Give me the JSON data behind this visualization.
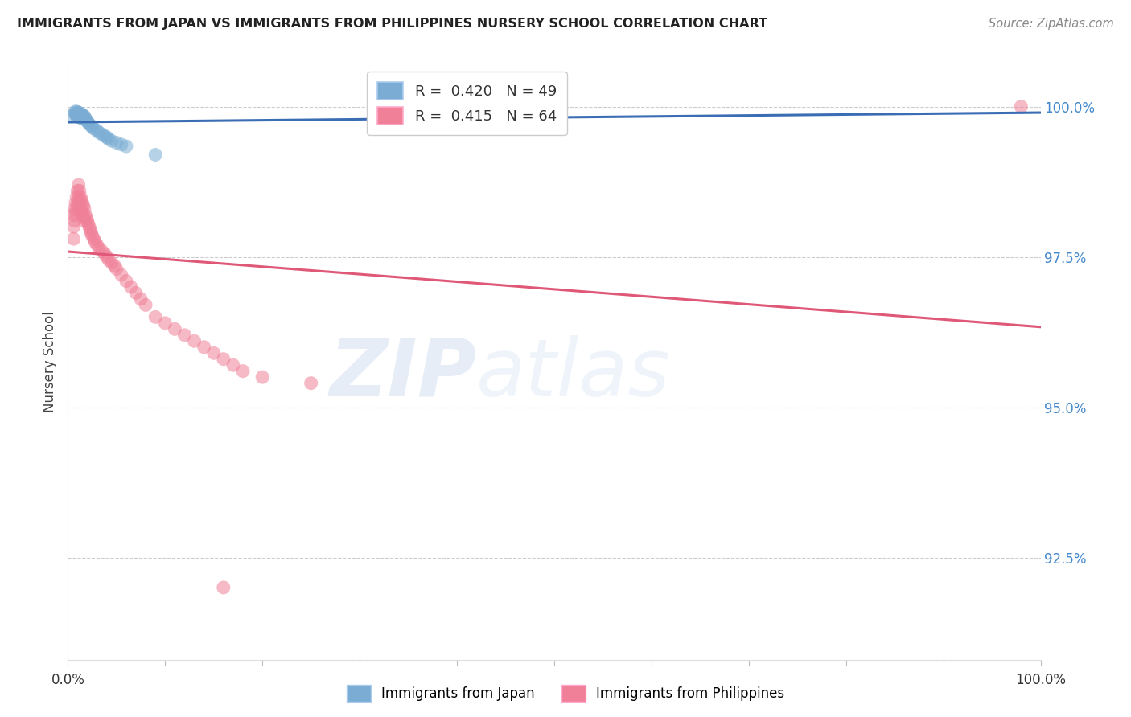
{
  "title": "IMMIGRANTS FROM JAPAN VS IMMIGRANTS FROM PHILIPPINES NURSERY SCHOOL CORRELATION CHART",
  "source": "Source: ZipAtlas.com",
  "ylabel": "Nursery School",
  "ytick_labels": [
    "100.0%",
    "97.5%",
    "95.0%",
    "92.5%"
  ],
  "ytick_values": [
    1.0,
    0.975,
    0.95,
    0.925
  ],
  "xlim": [
    0.0,
    1.0
  ],
  "ylim": [
    0.908,
    1.007
  ],
  "legend_japan_R": "0.420",
  "legend_japan_N": "49",
  "legend_phil_R": "0.415",
  "legend_phil_N": "64",
  "japan_color": "#7BADD4",
  "phil_color": "#F08098",
  "japan_line_color": "#3B6DB5",
  "phil_line_color": "#E05878",
  "background_color": "#ffffff",
  "watermark_zip": "ZIP",
  "watermark_atlas": "atlas",
  "japan_x": [
    0.005,
    0.007,
    0.008,
    0.008,
    0.009,
    0.009,
    0.01,
    0.01,
    0.01,
    0.01,
    0.011,
    0.011,
    0.012,
    0.012,
    0.012,
    0.013,
    0.013,
    0.013,
    0.014,
    0.014,
    0.014,
    0.015,
    0.015,
    0.015,
    0.016,
    0.016,
    0.017,
    0.017,
    0.018,
    0.019,
    0.02,
    0.021,
    0.022,
    0.024,
    0.025,
    0.027,
    0.03,
    0.032,
    0.035,
    0.038,
    0.04,
    0.042,
    0.045,
    0.05,
    0.055,
    0.06,
    0.09,
    0.38,
    0.43
  ],
  "japan_y": [
    0.9985,
    0.999,
    0.9992,
    0.9988,
    0.9987,
    0.9984,
    0.9991,
    0.9989,
    0.9986,
    0.9983,
    0.999,
    0.9987,
    0.9989,
    0.9986,
    0.9983,
    0.9988,
    0.9985,
    0.9982,
    0.9987,
    0.9984,
    0.9981,
    0.9986,
    0.9983,
    0.998,
    0.9985,
    0.9982,
    0.9984,
    0.9981,
    0.998,
    0.9978,
    0.9975,
    0.9973,
    0.9971,
    0.9968,
    0.9966,
    0.9963,
    0.996,
    0.9957,
    0.9954,
    0.9951,
    0.9949,
    0.9946,
    0.9943,
    0.994,
    0.9937,
    0.9934,
    0.992,
    0.9998,
    0.9999
  ],
  "phil_x": [
    0.005,
    0.006,
    0.006,
    0.007,
    0.007,
    0.008,
    0.008,
    0.009,
    0.009,
    0.01,
    0.01,
    0.011,
    0.011,
    0.012,
    0.012,
    0.013,
    0.013,
    0.014,
    0.014,
    0.015,
    0.015,
    0.016,
    0.016,
    0.017,
    0.017,
    0.018,
    0.019,
    0.02,
    0.021,
    0.022,
    0.023,
    0.024,
    0.025,
    0.027,
    0.028,
    0.03,
    0.032,
    0.035,
    0.038,
    0.04,
    0.042,
    0.045,
    0.048,
    0.05,
    0.055,
    0.06,
    0.065,
    0.07,
    0.075,
    0.08,
    0.09,
    0.1,
    0.11,
    0.12,
    0.13,
    0.14,
    0.15,
    0.16,
    0.17,
    0.18,
    0.2,
    0.25,
    0.16,
    0.98
  ],
  "phil_y": [
    0.982,
    0.98,
    0.978,
    0.983,
    0.981,
    0.984,
    0.982,
    0.985,
    0.983,
    0.986,
    0.984,
    0.987,
    0.985,
    0.986,
    0.984,
    0.985,
    0.983,
    0.9845,
    0.9825,
    0.984,
    0.982,
    0.9835,
    0.9815,
    0.983,
    0.981,
    0.982,
    0.9815,
    0.981,
    0.9805,
    0.98,
    0.9795,
    0.979,
    0.9785,
    0.978,
    0.9775,
    0.977,
    0.9765,
    0.976,
    0.9755,
    0.975,
    0.9745,
    0.974,
    0.9735,
    0.973,
    0.972,
    0.971,
    0.97,
    0.969,
    0.968,
    0.967,
    0.965,
    0.964,
    0.963,
    0.962,
    0.961,
    0.96,
    0.959,
    0.958,
    0.957,
    0.956,
    0.955,
    0.954,
    0.92,
    1.0
  ]
}
